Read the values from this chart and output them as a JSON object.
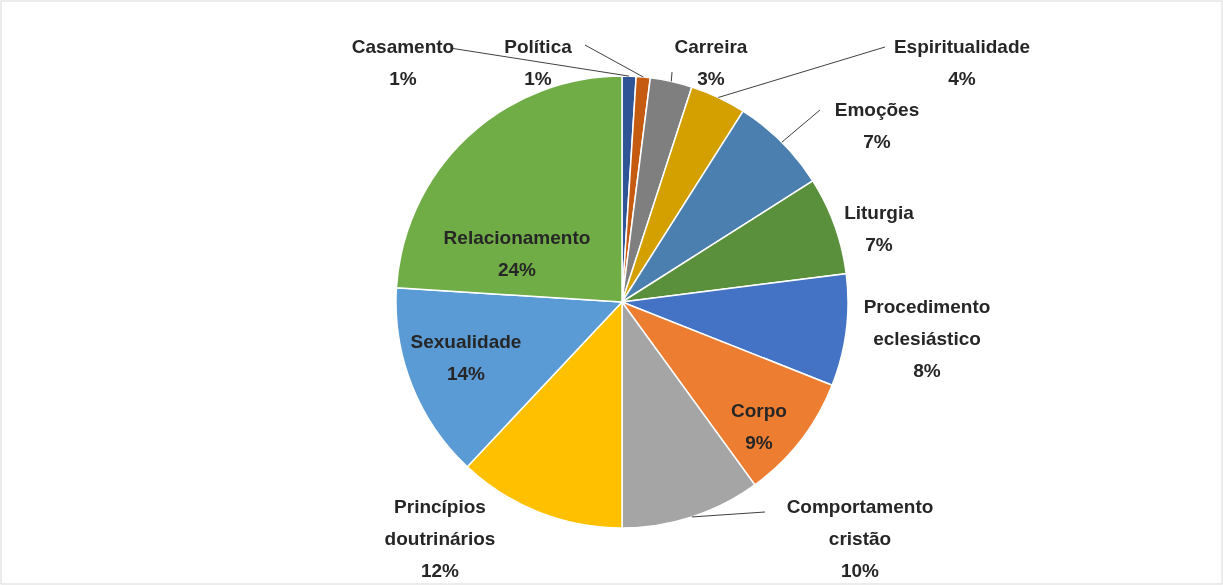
{
  "chart_data": {
    "type": "pie",
    "categories": [
      "Casamento",
      "Política",
      "Carreira",
      "Espiritualidade",
      "Emoções",
      "Liturgia",
      "Procedimento eclesiástico",
      "Corpo",
      "Comportamento cristão",
      "Princípios doutrinários",
      "Sexualidade",
      "Relacionamento"
    ],
    "values": [
      1,
      1,
      3,
      4,
      7,
      7,
      8,
      9,
      10,
      12,
      14,
      24
    ],
    "value_labels": [
      "1%",
      "1%",
      "3%",
      "4%",
      "7%",
      "7%",
      "8%",
      "9%",
      "10%",
      "12%",
      "14%",
      "24%"
    ],
    "colors": [
      "#2f5597",
      "#c55a11",
      "#7f7f7f",
      "#d4a000",
      "#4a7fb0",
      "#5a8f3c",
      "#4472c4",
      "#ed7d31",
      "#a5a5a5",
      "#ffc000",
      "#5b9bd5",
      "#70ad47"
    ],
    "legend": false
  }
}
